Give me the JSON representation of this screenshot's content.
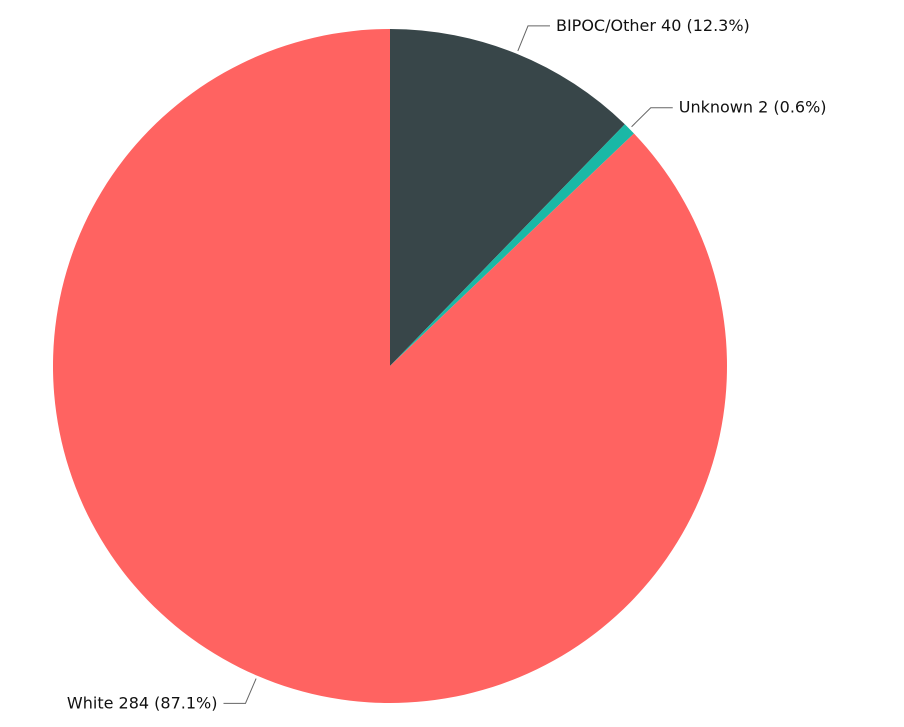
{
  "chart_data": {
    "type": "pie",
    "categories": [
      "BIPOC/Other",
      "Unknown",
      "White"
    ],
    "values": [
      40,
      2,
      284
    ],
    "value_labels": [
      "40 (12.3%)",
      "2 (0.6%)",
      "284 (87.1%)"
    ],
    "colors": [
      "#384649",
      "#1ab8a6",
      "#ff6361"
    ]
  }
}
